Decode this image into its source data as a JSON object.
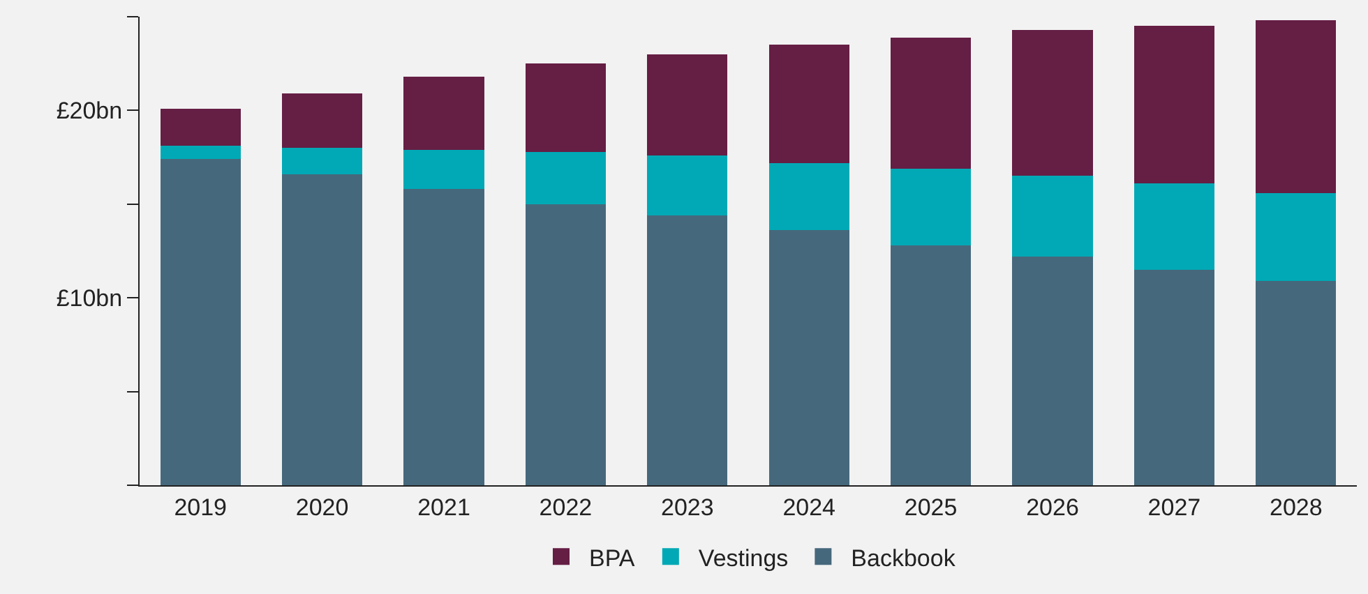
{
  "chart_data": {
    "type": "bar",
    "stacked": true,
    "categories": [
      "2019",
      "2020",
      "2021",
      "2022",
      "2023",
      "2024",
      "2025",
      "2026",
      "2027",
      "2028"
    ],
    "series": [
      {
        "name": "Backbook",
        "color": "#46687c",
        "values": [
          17.4,
          16.6,
          15.8,
          15.0,
          14.4,
          13.6,
          12.8,
          12.2,
          11.5,
          10.9
        ]
      },
      {
        "name": "Vestings",
        "color": "#00a9b5",
        "values": [
          0.7,
          1.4,
          2.1,
          2.8,
          3.2,
          3.6,
          4.1,
          4.3,
          4.6,
          4.7
        ]
      },
      {
        "name": "BPA",
        "color": "#651e44",
        "values": [
          2.0,
          2.9,
          3.9,
          4.7,
          5.4,
          6.3,
          7.0,
          7.8,
          8.4,
          9.2
        ]
      }
    ],
    "ylim": [
      0,
      25
    ],
    "yticks": [
      {
        "value": 0,
        "label": null
      },
      {
        "value": 5,
        "label": null
      },
      {
        "value": 10,
        "label": "£10bn"
      },
      {
        "value": 15,
        "label": null
      },
      {
        "value": 20,
        "label": "£20bn"
      },
      {
        "value": 25,
        "label": null
      }
    ],
    "grid": false,
    "legend": "bottom"
  }
}
